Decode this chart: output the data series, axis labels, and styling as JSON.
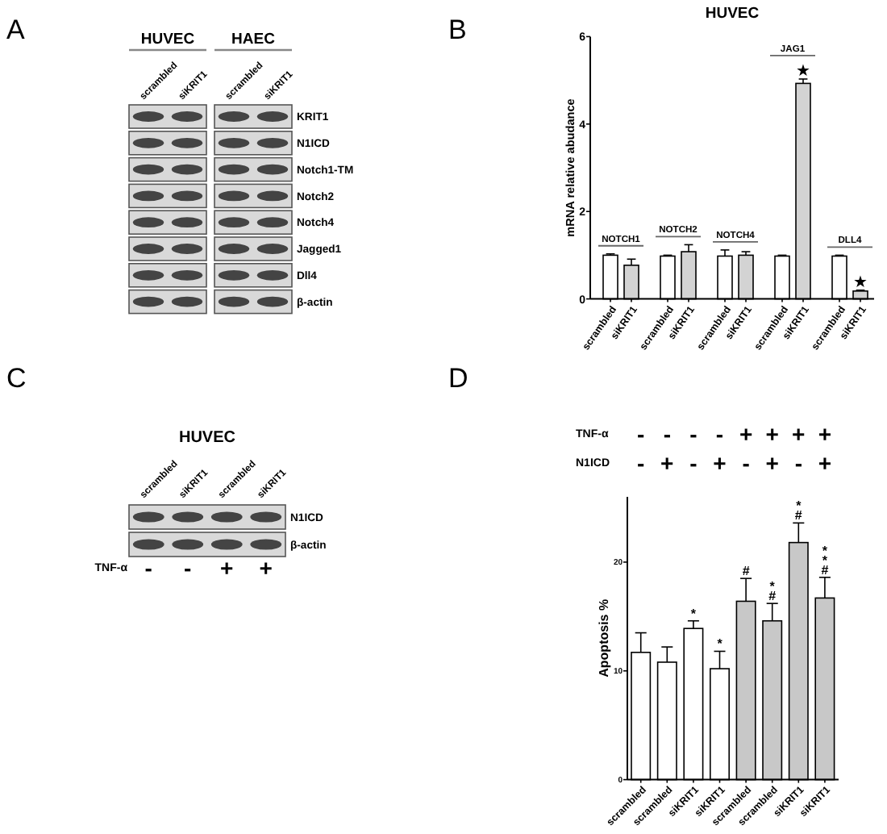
{
  "chart_data": [
    {
      "type": "other",
      "categories": [
        "scrambled",
        "siKRIT1",
        "scrambled",
        "siKRIT1"
      ],
      "annotations": [
        "A",
        "HUVEC",
        "HAEC",
        "KRIT1",
        "N1ICD",
        "Notch1-TM",
        "Notch2",
        "Notch4",
        "Jagged1",
        "Dll4",
        "β-actin"
      ]
    },
    {
      "type": "bar",
      "title": "HUVEC",
      "ylabel": "mRNA relative abudance",
      "categories": [
        "scrambled",
        "siKRIT1",
        "scrambled",
        "siKRIT1",
        "scrambled",
        "siKRIT1",
        "scrambled",
        "siKRIT1",
        "scrambled",
        "siKRIT1"
      ],
      "values": [
        1.0,
        0.77,
        0.98,
        1.08,
        0.98,
        1.0,
        0.98,
        4.93,
        0.98,
        0.18
      ],
      "errors": [
        [
          1.0,
          1.03
        ],
        [
          0.77,
          0.91
        ],
        [
          0.98,
          1.0
        ],
        [
          1.08,
          1.24
        ],
        [
          0.98,
          1.12
        ],
        [
          1.0,
          1.08
        ],
        [
          0.98,
          1.0
        ],
        [
          4.93,
          5.03
        ],
        [
          0.98,
          1.0
        ],
        [
          0.18,
          0.2
        ]
      ],
      "colors": [
        "#ffffff",
        "#d3d3d3",
        "#ffffff",
        "#d3d3d3",
        "#ffffff",
        "#d3d3d3",
        "#ffffff",
        "#d3d3d3",
        "#ffffff",
        "#d3d3d3"
      ],
      "ylim": [
        0,
        6
      ],
      "yticks": [
        0,
        2,
        4,
        6
      ],
      "annotations": [
        "B",
        "NOTCH1",
        "NOTCH2",
        "NOTCH4",
        "JAG1",
        "DLL4",
        "★",
        "★"
      ]
    },
    {
      "type": "other",
      "title": "HUVEC",
      "categories": [
        "scrambled",
        "siKRIT1",
        "scrambled",
        "siKRIT1"
      ],
      "annotations": [
        "C",
        "N1ICD",
        "β-actin",
        "TNF-α - - + +"
      ]
    },
    {
      "type": "bar",
      "ylabel": "Apoptosis %",
      "categories": [
        "scrambled",
        "scrambled",
        "siKRIT1",
        "siKRIT1",
        "scrambled",
        "scrambled",
        "siKRIT1",
        "siKRIT1"
      ],
      "values": [
        11.7,
        10.8,
        13.9,
        10.2,
        16.4,
        14.6,
        21.8,
        16.7
      ],
      "errors": [
        [
          11.7,
          13.5
        ],
        [
          10.8,
          12.2
        ],
        [
          13.9,
          14.6
        ],
        [
          10.2,
          11.8
        ],
        [
          16.4,
          18.5
        ],
        [
          14.6,
          16.2
        ],
        [
          21.8,
          23.6
        ],
        [
          16.7,
          18.6
        ]
      ],
      "colors": [
        "#ffffff",
        "#ffffff",
        "#ffffff",
        "#ffffff",
        "#c8c8c8",
        "#c8c8c8",
        "#c8c8c8",
        "#c8c8c8"
      ],
      "ylim": [
        0,
        26
      ],
      "yticks": [
        0,
        10,
        20
      ],
      "annotations": [
        "D",
        "TNF-α - - - - + + + +",
        "N1ICD - + - + - + - +",
        "*",
        "*",
        "#",
        "#",
        "*",
        "#",
        "*",
        "#",
        "*",
        "*"
      ]
    }
  ]
}
